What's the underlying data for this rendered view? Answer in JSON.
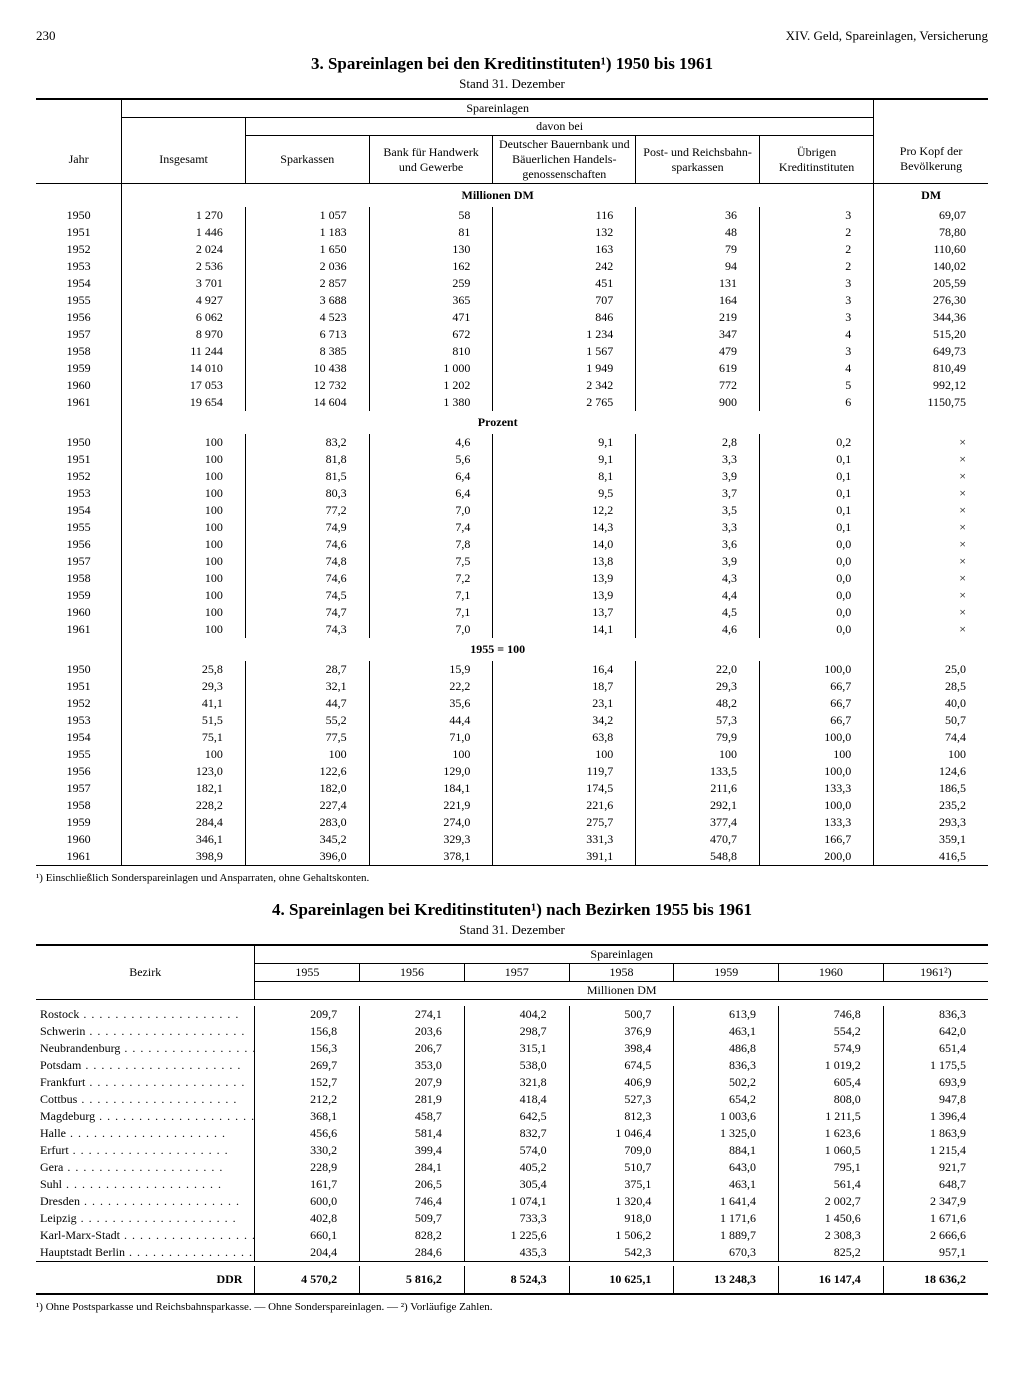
{
  "page_number": "230",
  "running_head": "XIV. Geld, Spareinlagen, Versicherung",
  "t1": {
    "title": "3. Spareinlagen bei den Kreditinstituten¹) 1950 bis 1961",
    "subtitle": "Stand 31. Dezember",
    "head": {
      "spe": "Spareinlagen",
      "davon": "davon bei",
      "jahr": "Jahr",
      "ins": "Insgesamt",
      "spar": "Sparkassen",
      "bhg": "Bank für Handwerk und Gewerbe",
      "dbh": "Deutscher Bauernbank und Bäuerlichen Handels- genossenschaften",
      "prs": "Post- und Reichsbahn- sparkassen",
      "ubr": "Übrigen Kreditinstituten",
      "pkb": "Pro Kopf der Bevölkerung"
    },
    "sec1": "Millionen DM",
    "sec1r": "DM",
    "sec2": "Prozent",
    "sec3": "1955 = 100",
    "rows_m": [
      [
        "1950",
        "1 270",
        "1 057",
        "58",
        "116",
        "36",
        "3",
        "69,07"
      ],
      [
        "1951",
        "1 446",
        "1 183",
        "81",
        "132",
        "48",
        "2",
        "78,80"
      ],
      [
        "1952",
        "2 024",
        "1 650",
        "130",
        "163",
        "79",
        "2",
        "110,60"
      ],
      [
        "1953",
        "2 536",
        "2 036",
        "162",
        "242",
        "94",
        "2",
        "140,02"
      ],
      [
        "1954",
        "3 701",
        "2 857",
        "259",
        "451",
        "131",
        "3",
        "205,59"
      ],
      [
        "1955",
        "4 927",
        "3 688",
        "365",
        "707",
        "164",
        "3",
        "276,30"
      ],
      [
        "1956",
        "6 062",
        "4 523",
        "471",
        "846",
        "219",
        "3",
        "344,36"
      ],
      [
        "1957",
        "8 970",
        "6 713",
        "672",
        "1 234",
        "347",
        "4",
        "515,20"
      ],
      [
        "1958",
        "11 244",
        "8 385",
        "810",
        "1 567",
        "479",
        "3",
        "649,73"
      ],
      [
        "1959",
        "14 010",
        "10 438",
        "1 000",
        "1 949",
        "619",
        "4",
        "810,49"
      ],
      [
        "1960",
        "17 053",
        "12 732",
        "1 202",
        "2 342",
        "772",
        "5",
        "992,12"
      ],
      [
        "1961",
        "19 654",
        "14 604",
        "1 380",
        "2 765",
        "900",
        "6",
        "1150,75"
      ]
    ],
    "rows_p": [
      [
        "1950",
        "100",
        "83,2",
        "4,6",
        "9,1",
        "2,8",
        "0,2",
        "×"
      ],
      [
        "1951",
        "100",
        "81,8",
        "5,6",
        "9,1",
        "3,3",
        "0,1",
        "×"
      ],
      [
        "1952",
        "100",
        "81,5",
        "6,4",
        "8,1",
        "3,9",
        "0,1",
        "×"
      ],
      [
        "1953",
        "100",
        "80,3",
        "6,4",
        "9,5",
        "3,7",
        "0,1",
        "×"
      ],
      [
        "1954",
        "100",
        "77,2",
        "7,0",
        "12,2",
        "3,5",
        "0,1",
        "×"
      ],
      [
        "1955",
        "100",
        "74,9",
        "7,4",
        "14,3",
        "3,3",
        "0,1",
        "×"
      ],
      [
        "1956",
        "100",
        "74,6",
        "7,8",
        "14,0",
        "3,6",
        "0,0",
        "×"
      ],
      [
        "1957",
        "100",
        "74,8",
        "7,5",
        "13,8",
        "3,9",
        "0,0",
        "×"
      ],
      [
        "1958",
        "100",
        "74,6",
        "7,2",
        "13,9",
        "4,3",
        "0,0",
        "×"
      ],
      [
        "1959",
        "100",
        "74,5",
        "7,1",
        "13,9",
        "4,4",
        "0,0",
        "×"
      ],
      [
        "1960",
        "100",
        "74,7",
        "7,1",
        "13,7",
        "4,5",
        "0,0",
        "×"
      ],
      [
        "1961",
        "100",
        "74,3",
        "7,0",
        "14,1",
        "4,6",
        "0,0",
        "×"
      ]
    ],
    "rows_i": [
      [
        "1950",
        "25,8",
        "28,7",
        "15,9",
        "16,4",
        "22,0",
        "100,0",
        "25,0"
      ],
      [
        "1951",
        "29,3",
        "32,1",
        "22,2",
        "18,7",
        "29,3",
        "66,7",
        "28,5"
      ],
      [
        "1952",
        "41,1",
        "44,7",
        "35,6",
        "23,1",
        "48,2",
        "66,7",
        "40,0"
      ],
      [
        "1953",
        "51,5",
        "55,2",
        "44,4",
        "34,2",
        "57,3",
        "66,7",
        "50,7"
      ],
      [
        "1954",
        "75,1",
        "77,5",
        "71,0",
        "63,8",
        "79,9",
        "100,0",
        "74,4"
      ],
      [
        "1955",
        "100",
        "100",
        "100",
        "100",
        "100",
        "100",
        "100"
      ],
      [
        "1956",
        "123,0",
        "122,6",
        "129,0",
        "119,7",
        "133,5",
        "100,0",
        "124,6"
      ],
      [
        "1957",
        "182,1",
        "182,0",
        "184,1",
        "174,5",
        "211,6",
        "133,3",
        "186,5"
      ],
      [
        "1958",
        "228,2",
        "227,4",
        "221,9",
        "221,6",
        "292,1",
        "100,0",
        "235,2"
      ],
      [
        "1959",
        "284,4",
        "283,0",
        "274,0",
        "275,7",
        "377,4",
        "133,3",
        "293,3"
      ],
      [
        "1960",
        "346,1",
        "345,2",
        "329,3",
        "331,3",
        "470,7",
        "166,7",
        "359,1"
      ],
      [
        "1961",
        "398,9",
        "396,0",
        "378,1",
        "391,1",
        "548,8",
        "200,0",
        "416,5"
      ]
    ],
    "footnote": "¹) Einschließlich Sonderspareinlagen und Ansparraten, ohne Gehaltskonten."
  },
  "t2": {
    "title": "4. Spareinlagen bei Kreditinstituten¹) nach Bezirken 1955 bis 1961",
    "subtitle": "Stand 31. Dezember",
    "head": {
      "bez": "Bezirk",
      "spe": "Spareinlagen",
      "unit": "Millionen DM",
      "years": [
        "1955",
        "1956",
        "1957",
        "1958",
        "1959",
        "1960",
        "1961²)"
      ]
    },
    "rows": [
      [
        "Rostock",
        "209,7",
        "274,1",
        "404,2",
        "500,7",
        "613,9",
        "746,8",
        "836,3"
      ],
      [
        "Schwerin",
        "156,8",
        "203,6",
        "298,7",
        "376,9",
        "463,1",
        "554,2",
        "642,0"
      ],
      [
        "Neubrandenburg",
        "156,3",
        "206,7",
        "315,1",
        "398,4",
        "486,8",
        "574,9",
        "651,4"
      ],
      [
        "Potsdam",
        "269,7",
        "353,0",
        "538,0",
        "674,5",
        "836,3",
        "1 019,2",
        "1 175,5"
      ],
      [
        "Frankfurt",
        "152,7",
        "207,9",
        "321,8",
        "406,9",
        "502,2",
        "605,4",
        "693,9"
      ],
      [
        "Cottbus",
        "212,2",
        "281,9",
        "418,4",
        "527,3",
        "654,2",
        "808,0",
        "947,8"
      ],
      [
        "Magdeburg",
        "368,1",
        "458,7",
        "642,5",
        "812,3",
        "1 003,6",
        "1 211,5",
        "1 396,4"
      ],
      [
        "Halle",
        "456,6",
        "581,4",
        "832,7",
        "1 046,4",
        "1 325,0",
        "1 623,6",
        "1 863,9"
      ],
      [
        "Erfurt",
        "330,2",
        "399,4",
        "574,0",
        "709,0",
        "884,1",
        "1 060,5",
        "1 215,4"
      ],
      [
        "Gera",
        "228,9",
        "284,1",
        "405,2",
        "510,7",
        "643,0",
        "795,1",
        "921,7"
      ],
      [
        "Suhl",
        "161,7",
        "206,5",
        "305,4",
        "375,1",
        "463,1",
        "561,4",
        "648,7"
      ],
      [
        "Dresden",
        "600,0",
        "746,4",
        "1 074,1",
        "1 320,4",
        "1 641,4",
        "2 002,7",
        "2 347,9"
      ],
      [
        "Leipzig",
        "402,8",
        "509,7",
        "733,3",
        "918,0",
        "1 171,6",
        "1 450,6",
        "1 671,6"
      ],
      [
        "Karl-Marx-Stadt",
        "660,1",
        "828,2",
        "1 225,6",
        "1 506,2",
        "1 889,7",
        "2 308,3",
        "2 666,6"
      ],
      [
        "Hauptstadt Berlin",
        "204,4",
        "284,6",
        "435,3",
        "542,3",
        "670,3",
        "825,2",
        "957,1"
      ]
    ],
    "total": [
      "DDR",
      "4 570,2",
      "5 816,2",
      "8 524,3",
      "10 625,1",
      "13 248,3",
      "16 147,4",
      "18 636,2"
    ],
    "footnote": "¹) Ohne Postsparkasse und Reichsbahnsparkasse. — Ohne Sonderspareinlagen. — ²) Vorläufige Zahlen."
  }
}
